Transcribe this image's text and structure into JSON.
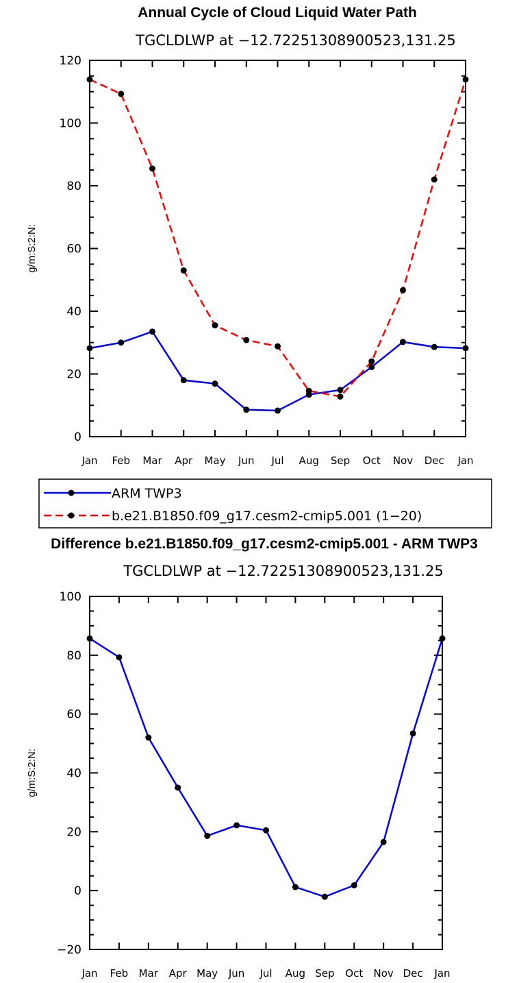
{
  "chart_data": [
    {
      "type": "line",
      "title": "Annual Cycle of Cloud Liquid Water Path",
      "subtitle": "TGCLDLWP at −12.72251308900523,131.25",
      "xlabel": "",
      "ylabel": "g/m:S:2:N:",
      "ylim": [
        0,
        120
      ],
      "yticks": [
        0,
        20,
        40,
        60,
        80,
        100,
        120
      ],
      "categories": [
        "Jan",
        "Feb",
        "Mar",
        "Apr",
        "May",
        "Jun",
        "Jul",
        "Aug",
        "Sep",
        "Oct",
        "Nov",
        "Dec",
        "Jan"
      ],
      "series": [
        {
          "name": "ARM TWP3",
          "color": "#0000ff",
          "dash": "solid",
          "values": [
            28.2,
            30.0,
            33.5,
            18.0,
            16.9,
            8.6,
            8.3,
            13.4,
            14.9,
            22.2,
            30.2,
            28.6,
            28.2
          ]
        },
        {
          "name": "b.e21.B1850.f09_g17.cesm2-cmip5.001 (1−20)",
          "color": "#ff0000",
          "dash": "dashed",
          "values": [
            113.9,
            109.3,
            85.5,
            53.0,
            35.5,
            30.8,
            28.8,
            14.6,
            12.8,
            24.0,
            46.7,
            82.0,
            113.9
          ]
        }
      ],
      "legend": "below"
    },
    {
      "type": "line",
      "title": "Difference b.e21.B1850.f09_g17.cesm2-cmip5.001 - ARM TWP3",
      "subtitle": "TGCLDLWP at −12.72251308900523,131.25",
      "xlabel": "",
      "ylabel": "g/m:S:2:N:",
      "ylim": [
        -20,
        100
      ],
      "yticks": [
        -20,
        0,
        20,
        40,
        60,
        80,
        100
      ],
      "categories": [
        "Jan",
        "Feb",
        "Mar",
        "Apr",
        "May",
        "Jun",
        "Jul",
        "Aug",
        "Sep",
        "Oct",
        "Nov",
        "Dec",
        "Jan"
      ],
      "series": [
        {
          "color": "#0000ff",
          "dash": "solid",
          "values": [
            85.7,
            79.3,
            52.0,
            35.0,
            18.6,
            22.2,
            20.5,
            1.2,
            -2.1,
            1.8,
            16.5,
            53.4,
            85.7
          ]
        }
      ]
    }
  ]
}
